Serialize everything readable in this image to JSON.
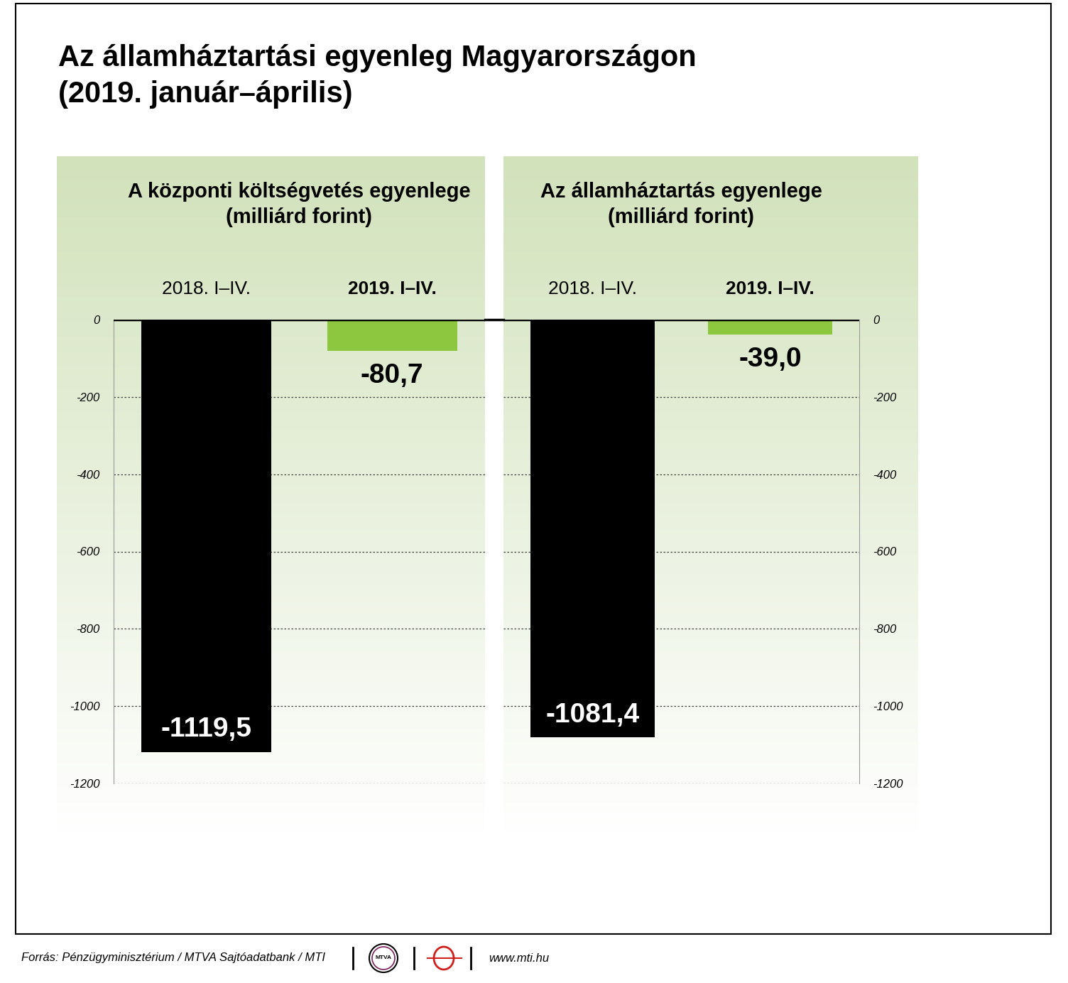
{
  "title": "Az államháztartási egyenleg Magyarországon\n(2019. január–április)",
  "chart_data": [
    {
      "type": "bar",
      "title": "A központi költségvetés egyenlege\n(milliárd forint)",
      "categories": [
        "2018. I–IV.",
        "2019. I–IV."
      ],
      "values": [
        -1119.5,
        -80.7
      ],
      "value_labels": [
        "-1119,5",
        "-80,7"
      ],
      "colors": [
        "#000000",
        "#8dc63f"
      ],
      "ylim": [
        -1200,
        0
      ],
      "yticks": [
        0,
        -200,
        -400,
        -600,
        -800,
        -1000,
        -1200
      ],
      "grid": true,
      "data_labels": true
    },
    {
      "type": "bar",
      "title": "Az államháztartás egyenlege\n(milliárd forint)",
      "categories": [
        "2018. I–IV.",
        "2019. I–IV."
      ],
      "values": [
        -1081.4,
        -39.0
      ],
      "value_labels": [
        "-1081,4",
        "-39,0"
      ],
      "colors": [
        "#000000",
        "#8dc63f"
      ],
      "ylim": [
        -1200,
        0
      ],
      "yticks": [
        0,
        -200,
        -400,
        -600,
        -800,
        -1000,
        -1200
      ],
      "grid": true,
      "data_labels": true
    }
  ],
  "source": "Forrás: Pénzügyminisztérium / MTVA Sajtóadatbank / MTI",
  "logo": "MTVA",
  "url": "www.mti.hu"
}
